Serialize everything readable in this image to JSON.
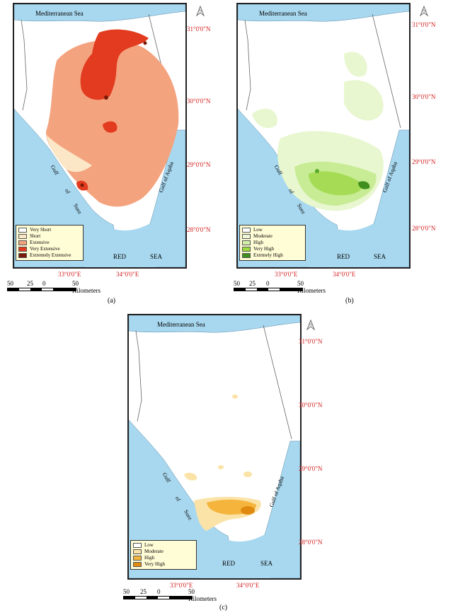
{
  "panels": [
    {
      "caption": "(a)",
      "labels": {
        "sea_north": "Mediterranean Sea",
        "red_sea_left": "RED",
        "red_sea_right": "SEA",
        "gulf_suez": [
          "Gulf",
          "of",
          "Suez"
        ],
        "gulf_aqaba": "Gulf of Aqaba"
      },
      "lat_ticks": [
        "31°0'0\"N",
        "30°0'0\"N",
        "29°0'0\"N",
        "28°0'0\"N"
      ],
      "lon_ticks": [
        "33°0'0\"E",
        "34°0'0\"E"
      ],
      "scale": {
        "numbers": [
          "50",
          "25",
          "0",
          "50 Kilometers"
        ]
      },
      "legend": [
        {
          "label": "Very Short",
          "color": "#ffffff"
        },
        {
          "label": "Short",
          "color": "#fbe7c6"
        },
        {
          "label": "Extensive",
          "color": "#f4a37f"
        },
        {
          "label": "Very Extensive",
          "color": "#e23b1f"
        },
        {
          "label": "Extremely Extensive",
          "color": "#7a1a0a"
        }
      ]
    },
    {
      "caption": "(b)",
      "labels": {
        "sea_north": "Mediterranean Sea",
        "red_sea_left": "RED",
        "red_sea_right": "SEA",
        "gulf_suez": [
          "Gulf",
          "of",
          "Suez"
        ],
        "gulf_aqaba": "Gulf of Aqaba"
      },
      "lat_ticks": [
        "31°0'0\"N",
        "30°0'0\"N",
        "29°0'0\"N",
        "28°0'0\"N"
      ],
      "lon_ticks": [
        "33°0'0\"E",
        "34°0'0\"E"
      ],
      "scale": {
        "numbers": [
          "50",
          "25",
          "0",
          "50 Kilometers"
        ]
      },
      "legend": [
        {
          "label": "Low",
          "color": "#ffffff"
        },
        {
          "label": "Moderate",
          "color": "#eef8d8"
        },
        {
          "label": "High",
          "color": "#d2f0a8"
        },
        {
          "label": "Very High",
          "color": "#9ddc3c"
        },
        {
          "label": "Extrmely High",
          "color": "#3f8f1e"
        }
      ]
    },
    {
      "caption": "(c)",
      "labels": {
        "sea_north": "Mediterranean Sea",
        "red_sea_left": "RED",
        "red_sea_right": "SEA",
        "gulf_suez": [
          "Gulf",
          "of",
          "Suez"
        ],
        "gulf_aqaba": "Gulf of Aqaba"
      },
      "lat_ticks": [
        "31°0'0\"N",
        "30°0'0\"N",
        "29°0'0\"N",
        "28°0'0\"N"
      ],
      "lon_ticks": [
        "33°0'0\"E",
        "34°0'0\"E"
      ],
      "scale": {
        "numbers": [
          "50",
          "25",
          "0",
          "50 Kilometers"
        ]
      },
      "legend": [
        {
          "label": "Low",
          "color": "#ffffff"
        },
        {
          "label": "Moderate",
          "color": "#fbe3a8"
        },
        {
          "label": "High",
          "color": "#f5b53d"
        },
        {
          "label": "Very High",
          "color": "#e08a10"
        }
      ]
    }
  ],
  "colors": {
    "sea": "#a8d8ef",
    "frame": "#222222",
    "coord_text": "#d21e1e",
    "legend_bg": "#fffdd6"
  }
}
